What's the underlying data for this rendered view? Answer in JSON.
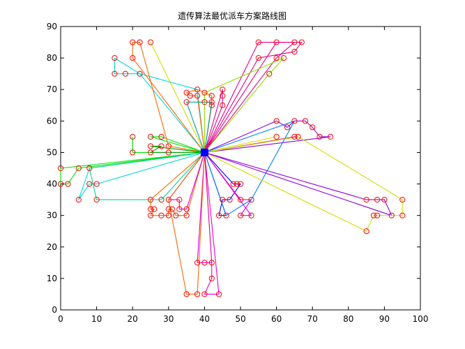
{
  "chart_data": {
    "type": "line",
    "title": "遗传算法最优派车方案路线图",
    "xlabel": "",
    "ylabel": "",
    "xlim": [
      0,
      100
    ],
    "ylim": [
      0,
      90
    ],
    "xticks": [
      0,
      10,
      20,
      30,
      40,
      50,
      60,
      70,
      80,
      90,
      100
    ],
    "yticks": [
      0,
      10,
      20,
      30,
      40,
      50,
      60,
      70,
      80,
      90
    ],
    "grid": false,
    "depot": {
      "x": 40,
      "y": 50,
      "color": "#0000ff"
    },
    "customers": [
      [
        20,
        85
      ],
      [
        22,
        85
      ],
      [
        25,
        85
      ],
      [
        15,
        80
      ],
      [
        20,
        80
      ],
      [
        15,
        75
      ],
      [
        18,
        75
      ],
      [
        22,
        75
      ],
      [
        55,
        85
      ],
      [
        60,
        85
      ],
      [
        65,
        85
      ],
      [
        67,
        85
      ],
      [
        55,
        80
      ],
      [
        60,
        80
      ],
      [
        62,
        80
      ],
      [
        65,
        82
      ],
      [
        58,
        75
      ],
      [
        35,
        69
      ],
      [
        38,
        70
      ],
      [
        40,
        69
      ],
      [
        36,
        68
      ],
      [
        38,
        68
      ],
      [
        42,
        68
      ],
      [
        42,
        66
      ],
      [
        42,
        65
      ],
      [
        35,
        66
      ],
      [
        40,
        66
      ],
      [
        45,
        70
      ],
      [
        45,
        68
      ],
      [
        45,
        65
      ],
      [
        20,
        55
      ],
      [
        25,
        55
      ],
      [
        28,
        55
      ],
      [
        25,
        52
      ],
      [
        28,
        52
      ],
      [
        30,
        52
      ],
      [
        30,
        50
      ],
      [
        25,
        50
      ],
      [
        20,
        50
      ],
      [
        60,
        60
      ],
      [
        63,
        58
      ],
      [
        65,
        60
      ],
      [
        68,
        60
      ],
      [
        70,
        58
      ],
      [
        72,
        55
      ],
      [
        75,
        55
      ],
      [
        65,
        55
      ],
      [
        66,
        55
      ],
      [
        60,
        55
      ],
      [
        0,
        45
      ],
      [
        5,
        45
      ],
      [
        8,
        45
      ],
      [
        0,
        40
      ],
      [
        2,
        40
      ],
      [
        8,
        40
      ],
      [
        10,
        40
      ],
      [
        5,
        35
      ],
      [
        10,
        35
      ],
      [
        25,
        35
      ],
      [
        28,
        35
      ],
      [
        30,
        35
      ],
      [
        33,
        35
      ],
      [
        25,
        32
      ],
      [
        26,
        32
      ],
      [
        30,
        32
      ],
      [
        31,
        32
      ],
      [
        33,
        32
      ],
      [
        35,
        32
      ],
      [
        25,
        30
      ],
      [
        28,
        30
      ],
      [
        30,
        30
      ],
      [
        32,
        30
      ],
      [
        35,
        30
      ],
      [
        48,
        40
      ],
      [
        49,
        40
      ],
      [
        50,
        40
      ],
      [
        45,
        35
      ],
      [
        47,
        35
      ],
      [
        50,
        35
      ],
      [
        53,
        35
      ],
      [
        44,
        30
      ],
      [
        46,
        30
      ],
      [
        50,
        30
      ],
      [
        53,
        30
      ],
      [
        85,
        35
      ],
      [
        88,
        35
      ],
      [
        90,
        35
      ],
      [
        95,
        35
      ],
      [
        87,
        30
      ],
      [
        88,
        30
      ],
      [
        92,
        30
      ],
      [
        95,
        30
      ],
      [
        85,
        25
      ],
      [
        38,
        15
      ],
      [
        40,
        15
      ],
      [
        42,
        15
      ],
      [
        42,
        10
      ],
      [
        35,
        5
      ],
      [
        38,
        5
      ],
      [
        40,
        5
      ],
      [
        44,
        5
      ]
    ],
    "marker": {
      "edge": "#ff0000",
      "fill": "#ffff00"
    },
    "series": [
      {
        "color": "#00e000",
        "values": [
          [
            20,
            55
          ],
          [
            20,
            50
          ],
          [
            40,
            50
          ]
        ]
      },
      {
        "color": "#00e000",
        "values": [
          [
            40,
            50
          ],
          [
            25,
            55
          ],
          [
            28,
            55
          ],
          [
            40,
            50
          ]
        ]
      },
      {
        "color": "#00d8d8",
        "values": [
          [
            40,
            50
          ],
          [
            22,
            75
          ],
          [
            15,
            75
          ],
          [
            15,
            80
          ],
          [
            22,
            75
          ],
          [
            38,
            70
          ],
          [
            40,
            50
          ]
        ]
      },
      {
        "color": "#ff6600",
        "values": [
          [
            40,
            50
          ],
          [
            20,
            80
          ],
          [
            20,
            85
          ],
          [
            22,
            85
          ],
          [
            30,
            52
          ],
          [
            40,
            50
          ]
        ]
      },
      {
        "color": "#d0e000",
        "values": [
          [
            40,
            50
          ],
          [
            25,
            85
          ],
          [
            40,
            50
          ]
        ]
      },
      {
        "color": "#e0008f",
        "values": [
          [
            40,
            50
          ],
          [
            55,
            85
          ],
          [
            67,
            85
          ],
          [
            65,
            82
          ],
          [
            55,
            80
          ],
          [
            40,
            50
          ]
        ]
      },
      {
        "color": "#e0008f",
        "values": [
          [
            40,
            50
          ],
          [
            60,
            85
          ],
          [
            65,
            85
          ],
          [
            60,
            80
          ],
          [
            40,
            50
          ]
        ]
      },
      {
        "color": "#90e000",
        "values": [
          [
            40,
            50
          ],
          [
            40,
            69
          ],
          [
            62,
            80
          ],
          [
            58,
            75
          ],
          [
            40,
            50
          ]
        ]
      },
      {
        "color": "#ff6600",
        "values": [
          [
            40,
            50
          ],
          [
            38,
            68
          ],
          [
            36,
            68
          ],
          [
            35,
            69
          ],
          [
            38,
            70
          ],
          [
            42,
            68
          ],
          [
            42,
            65
          ],
          [
            40,
            50
          ]
        ]
      },
      {
        "color": "#00a0a0",
        "values": [
          [
            40,
            50
          ],
          [
            35,
            66
          ],
          [
            40,
            66
          ],
          [
            42,
            66
          ],
          [
            40,
            50
          ]
        ]
      },
      {
        "color": "#e0008f",
        "values": [
          [
            40,
            50
          ],
          [
            45,
            70
          ],
          [
            45,
            68
          ],
          [
            45,
            65
          ],
          [
            40,
            50
          ]
        ]
      },
      {
        "color": "#9000e0",
        "values": [
          [
            40,
            50
          ],
          [
            60,
            60
          ],
          [
            63,
            58
          ],
          [
            65,
            60
          ],
          [
            68,
            60
          ],
          [
            70,
            58
          ],
          [
            72,
            55
          ],
          [
            75,
            55
          ],
          [
            40,
            50
          ]
        ]
      },
      {
        "color": "#e0008f",
        "values": [
          [
            40,
            50
          ],
          [
            65,
            55
          ],
          [
            66,
            55
          ],
          [
            40,
            50
          ]
        ]
      },
      {
        "color": "#d0e000",
        "values": [
          [
            40,
            50
          ],
          [
            60,
            55
          ],
          [
            40,
            50
          ]
        ]
      },
      {
        "color": "#00a000",
        "values": [
          [
            40,
            50
          ],
          [
            25,
            52
          ],
          [
            28,
            52
          ],
          [
            25,
            50
          ],
          [
            30,
            50
          ],
          [
            40,
            50
          ]
        ]
      },
      {
        "color": "#00e000",
        "values": [
          [
            40,
            50
          ],
          [
            0,
            45
          ],
          [
            0,
            40
          ],
          [
            2,
            40
          ],
          [
            5,
            45
          ],
          [
            40,
            50
          ]
        ]
      },
      {
        "color": "#00d8d8",
        "values": [
          [
            40,
            50
          ],
          [
            8,
            45
          ],
          [
            5,
            35
          ],
          [
            8,
            40
          ],
          [
            10,
            40
          ],
          [
            40,
            50
          ]
        ]
      },
      {
        "color": "#00d890",
        "values": [
          [
            40,
            50
          ],
          [
            8,
            45
          ],
          [
            10,
            35
          ],
          [
            28,
            35
          ],
          [
            40,
            50
          ]
        ]
      },
      {
        "color": "#ff6600",
        "values": [
          [
            40,
            50
          ],
          [
            25,
            35
          ],
          [
            25,
            32
          ],
          [
            26,
            32
          ],
          [
            25,
            30
          ],
          [
            28,
            30
          ],
          [
            30,
            30
          ],
          [
            30,
            32
          ],
          [
            31,
            32
          ],
          [
            32,
            30
          ],
          [
            35,
            30
          ],
          [
            40,
            50
          ]
        ]
      },
      {
        "color": "#e000e0",
        "values": [
          [
            40,
            50
          ],
          [
            30,
            35
          ],
          [
            33,
            35
          ],
          [
            33,
            32
          ],
          [
            35,
            32
          ],
          [
            40,
            50
          ]
        ]
      },
      {
        "color": "#0000ff",
        "values": [
          [
            40,
            50
          ],
          [
            48,
            40
          ],
          [
            49,
            40
          ],
          [
            50,
            40
          ],
          [
            47,
            35
          ],
          [
            45,
            35
          ],
          [
            44,
            30
          ],
          [
            46,
            30
          ],
          [
            40,
            50
          ]
        ]
      },
      {
        "color": "#e000e0",
        "values": [
          [
            40,
            50
          ],
          [
            50,
            35
          ],
          [
            53,
            35
          ],
          [
            50,
            30
          ],
          [
            53,
            30
          ],
          [
            40,
            50
          ]
        ]
      },
      {
        "color": "#0080ff",
        "values": [
          [
            40,
            50
          ],
          [
            65,
            60
          ],
          [
            53,
            35
          ],
          [
            46,
            30
          ],
          [
            40,
            50
          ]
        ]
      },
      {
        "color": "#9000e0",
        "values": [
          [
            40,
            50
          ],
          [
            85,
            35
          ],
          [
            88,
            35
          ],
          [
            90,
            35
          ],
          [
            92,
            30
          ],
          [
            40,
            50
          ]
        ]
      },
      {
        "color": "#d0e000",
        "values": [
          [
            40,
            50
          ],
          [
            66,
            55
          ],
          [
            95,
            35
          ],
          [
            95,
            30
          ],
          [
            88,
            30
          ],
          [
            87,
            30
          ],
          [
            85,
            25
          ],
          [
            40,
            50
          ]
        ]
      },
      {
        "color": "#e000e0",
        "values": [
          [
            40,
            50
          ],
          [
            38,
            15
          ],
          [
            40,
            15
          ],
          [
            42,
            15
          ],
          [
            42,
            10
          ],
          [
            40,
            5
          ],
          [
            44,
            5
          ],
          [
            40,
            50
          ]
        ]
      },
      {
        "color": "#ff6600",
        "values": [
          [
            40,
            50
          ],
          [
            30,
            35
          ],
          [
            35,
            5
          ],
          [
            38,
            5
          ],
          [
            40,
            50
          ]
        ]
      },
      {
        "color": "#e0008f",
        "values": [
          [
            40,
            50
          ],
          [
            42,
            15
          ],
          [
            40,
            50
          ]
        ]
      }
    ]
  }
}
